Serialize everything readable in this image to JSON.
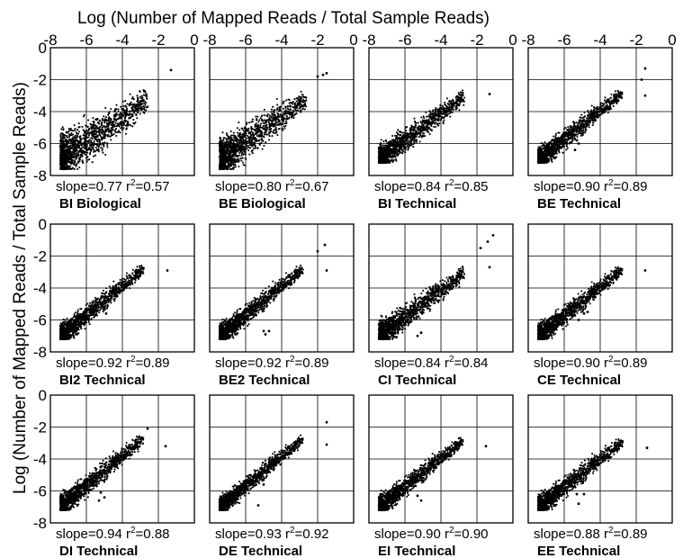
{
  "figure": {
    "xlabel": "Log (Number of Mapped Reads / Total Sample Reads)",
    "ylabel": "Log (Number of Mapped Reads / Total Sample Reads)",
    "xticks": [
      "-8",
      "-6",
      "-4",
      "-2",
      "0"
    ],
    "yticks": [
      "0",
      "-2",
      "-4",
      "-6",
      "-8"
    ]
  },
  "chart_data": {
    "type": "scatter",
    "grid": true,
    "xlim": [
      -8,
      0
    ],
    "ylim": [
      -8,
      0
    ],
    "panels": [
      {
        "label": "BI Biological",
        "slope": "0.77",
        "r2": "0.57",
        "outliers": [
          [
            -1.3,
            -1.4
          ]
        ]
      },
      {
        "label": "BE Biological",
        "slope": "0.80",
        "r2": "0.67",
        "outliers": [
          [
            -1.5,
            -1.6
          ],
          [
            -1.7,
            -1.7
          ],
          [
            -2.0,
            -1.8
          ]
        ]
      },
      {
        "label": "BI Technical",
        "slope": "0.84",
        "r2": "0.85",
        "outliers": [
          [
            -1.3,
            -2.9
          ]
        ]
      },
      {
        "label": "BE Technical",
        "slope": "0.90",
        "r2": "0.89",
        "outliers": [
          [
            -1.5,
            -1.3
          ],
          [
            -1.7,
            -2.0
          ],
          [
            -1.5,
            -3.0
          ],
          [
            -5.3,
            -5.8
          ],
          [
            -5.6,
            -5.9
          ],
          [
            -5.2,
            -6.0
          ],
          [
            -5.4,
            -6.4
          ]
        ]
      },
      {
        "label": "BI2 Technical",
        "slope": "0.92",
        "r2": "0.89",
        "outliers": [
          [
            -1.5,
            -2.9
          ],
          [
            -4.9,
            -4.8
          ],
          [
            -5.0,
            -5.2
          ],
          [
            -4.9,
            -5.6
          ]
        ]
      },
      {
        "label": "BE2 Technical",
        "slope": "0.92",
        "r2": "0.89",
        "outliers": [
          [
            -1.6,
            -1.3
          ],
          [
            -2.0,
            -1.7
          ],
          [
            -1.5,
            -2.9
          ],
          [
            -4.7,
            -6.7
          ],
          [
            -5.0,
            -6.7
          ],
          [
            -4.9,
            -6.9
          ]
        ]
      },
      {
        "label": "CI Technical",
        "slope": "0.84",
        "r2": "0.84",
        "outliers": [
          [
            -1.1,
            -0.7
          ],
          [
            -1.4,
            -1.1
          ],
          [
            -1.8,
            -1.5
          ],
          [
            -1.3,
            -2.7
          ],
          [
            -5.1,
            -6.8
          ],
          [
            -5.3,
            -7.0
          ]
        ]
      },
      {
        "label": "CE Technical",
        "slope": "0.90",
        "r2": "0.89",
        "outliers": [
          [
            -1.5,
            -2.9
          ],
          [
            -4.7,
            -5.5
          ],
          [
            -4.9,
            -5.6
          ],
          [
            -5.2,
            -6.0
          ]
        ]
      },
      {
        "label": "DI Technical",
        "slope": "0.94",
        "r2": "0.88",
        "outliers": [
          [
            -1.6,
            -3.2
          ],
          [
            -2.6,
            -2.1
          ],
          [
            -5.2,
            -6.1
          ],
          [
            -5.0,
            -6.4
          ],
          [
            -5.3,
            -6.6
          ]
        ]
      },
      {
        "label": "DE Technical",
        "slope": "0.93",
        "r2": "0.92",
        "outliers": [
          [
            -1.5,
            -1.7
          ],
          [
            -1.5,
            -3.1
          ],
          [
            -5.0,
            -5.6
          ],
          [
            -5.3,
            -6.9
          ],
          [
            -5.4,
            -5.3
          ]
        ]
      },
      {
        "label": "EI Technical",
        "slope": "0.90",
        "r2": "0.90",
        "outliers": [
          [
            -1.5,
            -3.2
          ],
          [
            -5.3,
            -6.3
          ],
          [
            -5.1,
            -6.6
          ]
        ]
      },
      {
        "label": "EE Technical",
        "slope": "0.88",
        "r2": "0.89",
        "outliers": [
          [
            -1.4,
            -3.3
          ],
          [
            -4.9,
            -6.2
          ],
          [
            -5.3,
            -6.2
          ],
          [
            -5.2,
            -6.8
          ]
        ]
      }
    ]
  }
}
